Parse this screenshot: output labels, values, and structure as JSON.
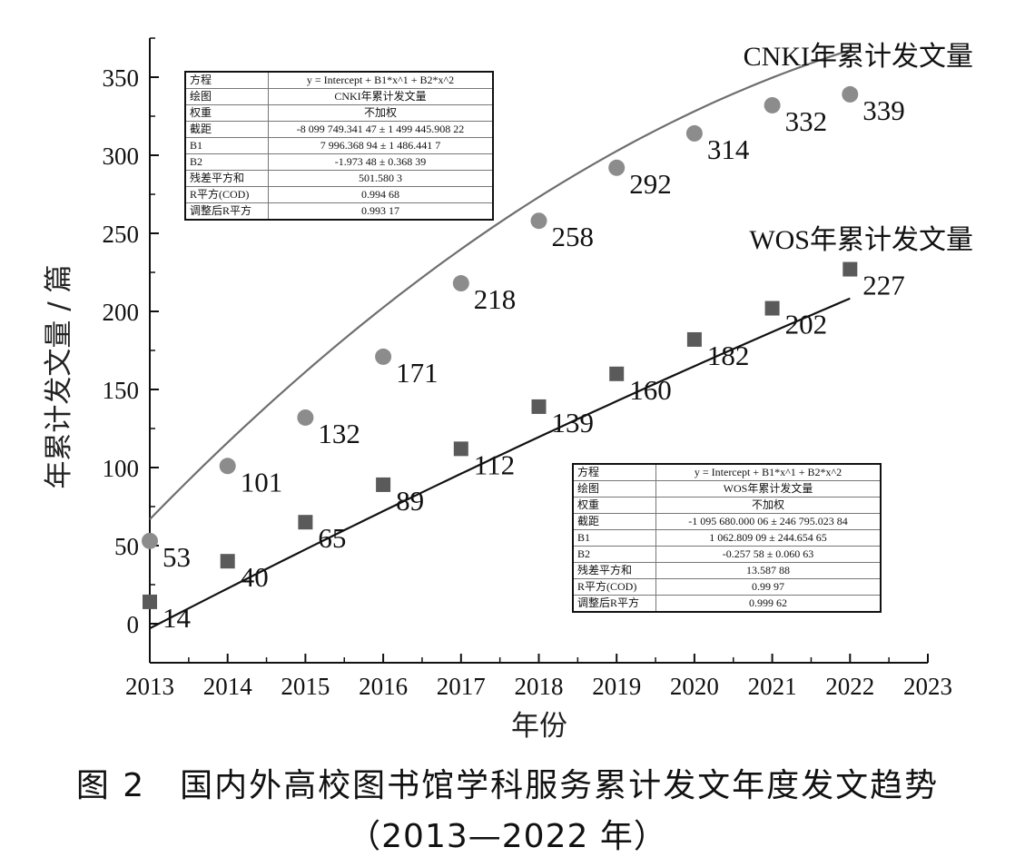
{
  "chart_data": {
    "type": "scatter",
    "xlabel": "年份",
    "ylabel": "年累计发文量 / 篇",
    "xlim": [
      2013,
      2023
    ],
    "ylim": [
      -25,
      375
    ],
    "xticks": [
      2013,
      2014,
      2015,
      2016,
      2017,
      2018,
      2019,
      2020,
      2021,
      2022,
      2023
    ],
    "yticks": [
      0,
      50,
      100,
      150,
      200,
      250,
      300,
      350
    ],
    "grid": false,
    "series": [
      {
        "name": "CNKI年累计发文量",
        "marker": "circle",
        "color": "#8c8c8c",
        "line_color": "#6e6e6e",
        "x": [
          2013,
          2014,
          2015,
          2016,
          2017,
          2018,
          2019,
          2020,
          2021,
          2022
        ],
        "values": [
          53,
          101,
          132,
          171,
          218,
          258,
          292,
          314,
          332,
          339
        ],
        "fit": {
          "type": "quadratic",
          "intercept": -8099749.34147,
          "b1": 7996.36894,
          "b2": -1.97348
        }
      },
      {
        "name": "WOS年累计发文量",
        "marker": "square",
        "color": "#5a5a5a",
        "line_color": "#111111",
        "x": [
          2013,
          2014,
          2015,
          2016,
          2017,
          2018,
          2019,
          2020,
          2021,
          2022
        ],
        "values": [
          14,
          40,
          65,
          89,
          112,
          139,
          160,
          182,
          202,
          227
        ],
        "fit": {
          "type": "quadratic",
          "intercept": -1095680.00006,
          "b1": 1062.80909,
          "b2": -0.25758
        }
      }
    ],
    "fit_tables": [
      {
        "rows": [
          {
            "key": "方程",
            "value": "y = Intercept + B1*x^1 + B2*x^2"
          },
          {
            "key": "绘图",
            "value": "CNKI年累计发文量"
          },
          {
            "key": "权重",
            "value": "不加权"
          },
          {
            "key": "截距",
            "value": "-8 099 749.341 47 ± 1 499 445.908 22"
          },
          {
            "key": "B1",
            "value": "7 996.368 94 ± 1 486.441 7"
          },
          {
            "key": "B2",
            "value": "-1.973 48 ± 0.368 39"
          },
          {
            "key": "残差平方和",
            "value": "501.580 3"
          },
          {
            "key": "R平方(COD)",
            "value": "0.994 68"
          },
          {
            "key": "调整后R平方",
            "value": "0.993 17"
          }
        ]
      },
      {
        "rows": [
          {
            "key": "方程",
            "value": "y = Intercept + B1*x^1 + B2*x^2"
          },
          {
            "key": "绘图",
            "value": "WOS年累计发文量"
          },
          {
            "key": "权重",
            "value": "不加权"
          },
          {
            "key": "截距",
            "value": "-1 095 680.000 06 ± 246 795.023 84"
          },
          {
            "key": "B1",
            "value": "1 062.809 09 ± 244.654 65"
          },
          {
            "key": "B2",
            "value": "-0.257 58 ± 0.060 63"
          },
          {
            "key": "残差平方和",
            "value": "13.587 88"
          },
          {
            "key": "R平方(COD)",
            "value": "0.99 97"
          },
          {
            "key": "调整后R平方",
            "value": "0.999 62"
          }
        ]
      }
    ]
  },
  "caption": {
    "title": "图 2　国内外高校图书馆学科服务累计发文年度发文趋势",
    "subtitle": "（2013—2022 年）"
  }
}
